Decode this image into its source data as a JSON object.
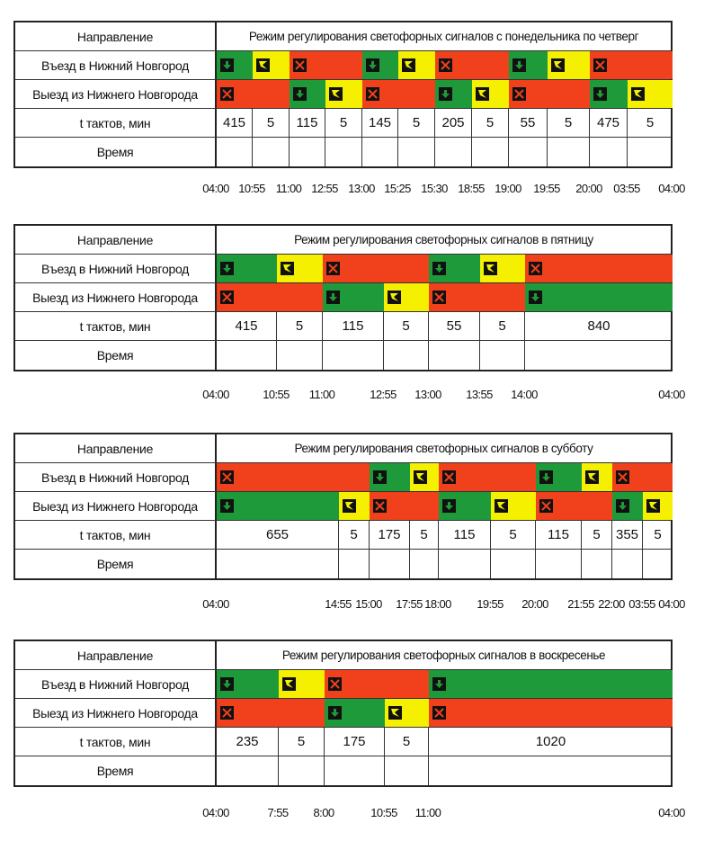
{
  "labels": {
    "direction": "Направление",
    "entry": "Въезд в Нижний Новгород",
    "exit": "Выезд из Нижнего Новгорода",
    "duration": "t тактов, мин",
    "time": "Время"
  },
  "colors": {
    "green": "#1f9a3a",
    "yellow": "#f4f000",
    "red": "#f0401c"
  },
  "state_legend": {
    "G": "green + go-arrow-icon",
    "Y": "yellow + transition-arrow-icon",
    "R": "red + stop-cross-icon",
    "r": "red, no icon"
  },
  "tables": [
    {
      "title": "Режим регулирования светофорных сигналов с понедельника по четверг",
      "entry": [
        "G",
        "Y",
        "R",
        "r",
        "G",
        "Y",
        "R",
        "r",
        "G",
        "Y",
        "R",
        "r"
      ],
      "exit": [
        "R",
        "r",
        "G",
        "Y",
        "R",
        "r",
        "G",
        "Y",
        "R",
        "r",
        "G",
        "Y"
      ],
      "durations": [
        "415",
        "5",
        "115",
        "5",
        "145",
        "5",
        "205",
        "5",
        "55",
        "5",
        "475",
        "5"
      ],
      "times": [
        "04:00",
        "10:55",
        "11:00",
        "12:55",
        "13:00",
        "15:25",
        "15:30",
        "18:55",
        "19:00",
        "19:55",
        "20:00",
        "03:55",
        "04:00"
      ]
    },
    {
      "title": "Режим регулирования светофорных сигналов в пятницу",
      "entry": [
        "G",
        "Y",
        "R",
        "r",
        "G",
        "Y",
        "R"
      ],
      "exit": [
        "R",
        "r",
        "G",
        "Y",
        "R",
        "r",
        "G"
      ],
      "durations": [
        "415",
        "5",
        "115",
        "5",
        "55",
        "5",
        "840"
      ],
      "times": [
        "04:00",
        "10:55",
        "11:00",
        "12:55",
        "13:00",
        "13:55",
        "14:00",
        "04:00"
      ]
    },
    {
      "title": "Режим регулирования светофорных сигналов в субботу",
      "entry": [
        "R",
        "r",
        "G",
        "Y",
        "R",
        "r",
        "G",
        "Y",
        "R",
        "r"
      ],
      "exit": [
        "G",
        "Y",
        "R",
        "r",
        "G",
        "Y",
        "R",
        "r",
        "G",
        "Y"
      ],
      "durations": [
        "655",
        "5",
        "175",
        "5",
        "115",
        "5",
        "115",
        "5",
        "355",
        "5"
      ],
      "times": [
        "04:00",
        "14:55",
        "15:00",
        "17:55",
        "18:00",
        "19:55",
        "20:00",
        "21:55",
        "22:00",
        "03:55",
        "04:00"
      ]
    },
    {
      "title": "Режим регулирования светофорных сигналов в воскресенье",
      "entry": [
        "G",
        "Y",
        "R",
        "r",
        "G"
      ],
      "exit": [
        "R",
        "r",
        "G",
        "Y",
        "R"
      ],
      "durations": [
        "235",
        "5",
        "175",
        "5",
        "1020"
      ],
      "times": [
        "04:00",
        "7:55",
        "8:00",
        "10:55",
        "11:00",
        "04:00"
      ]
    }
  ]
}
